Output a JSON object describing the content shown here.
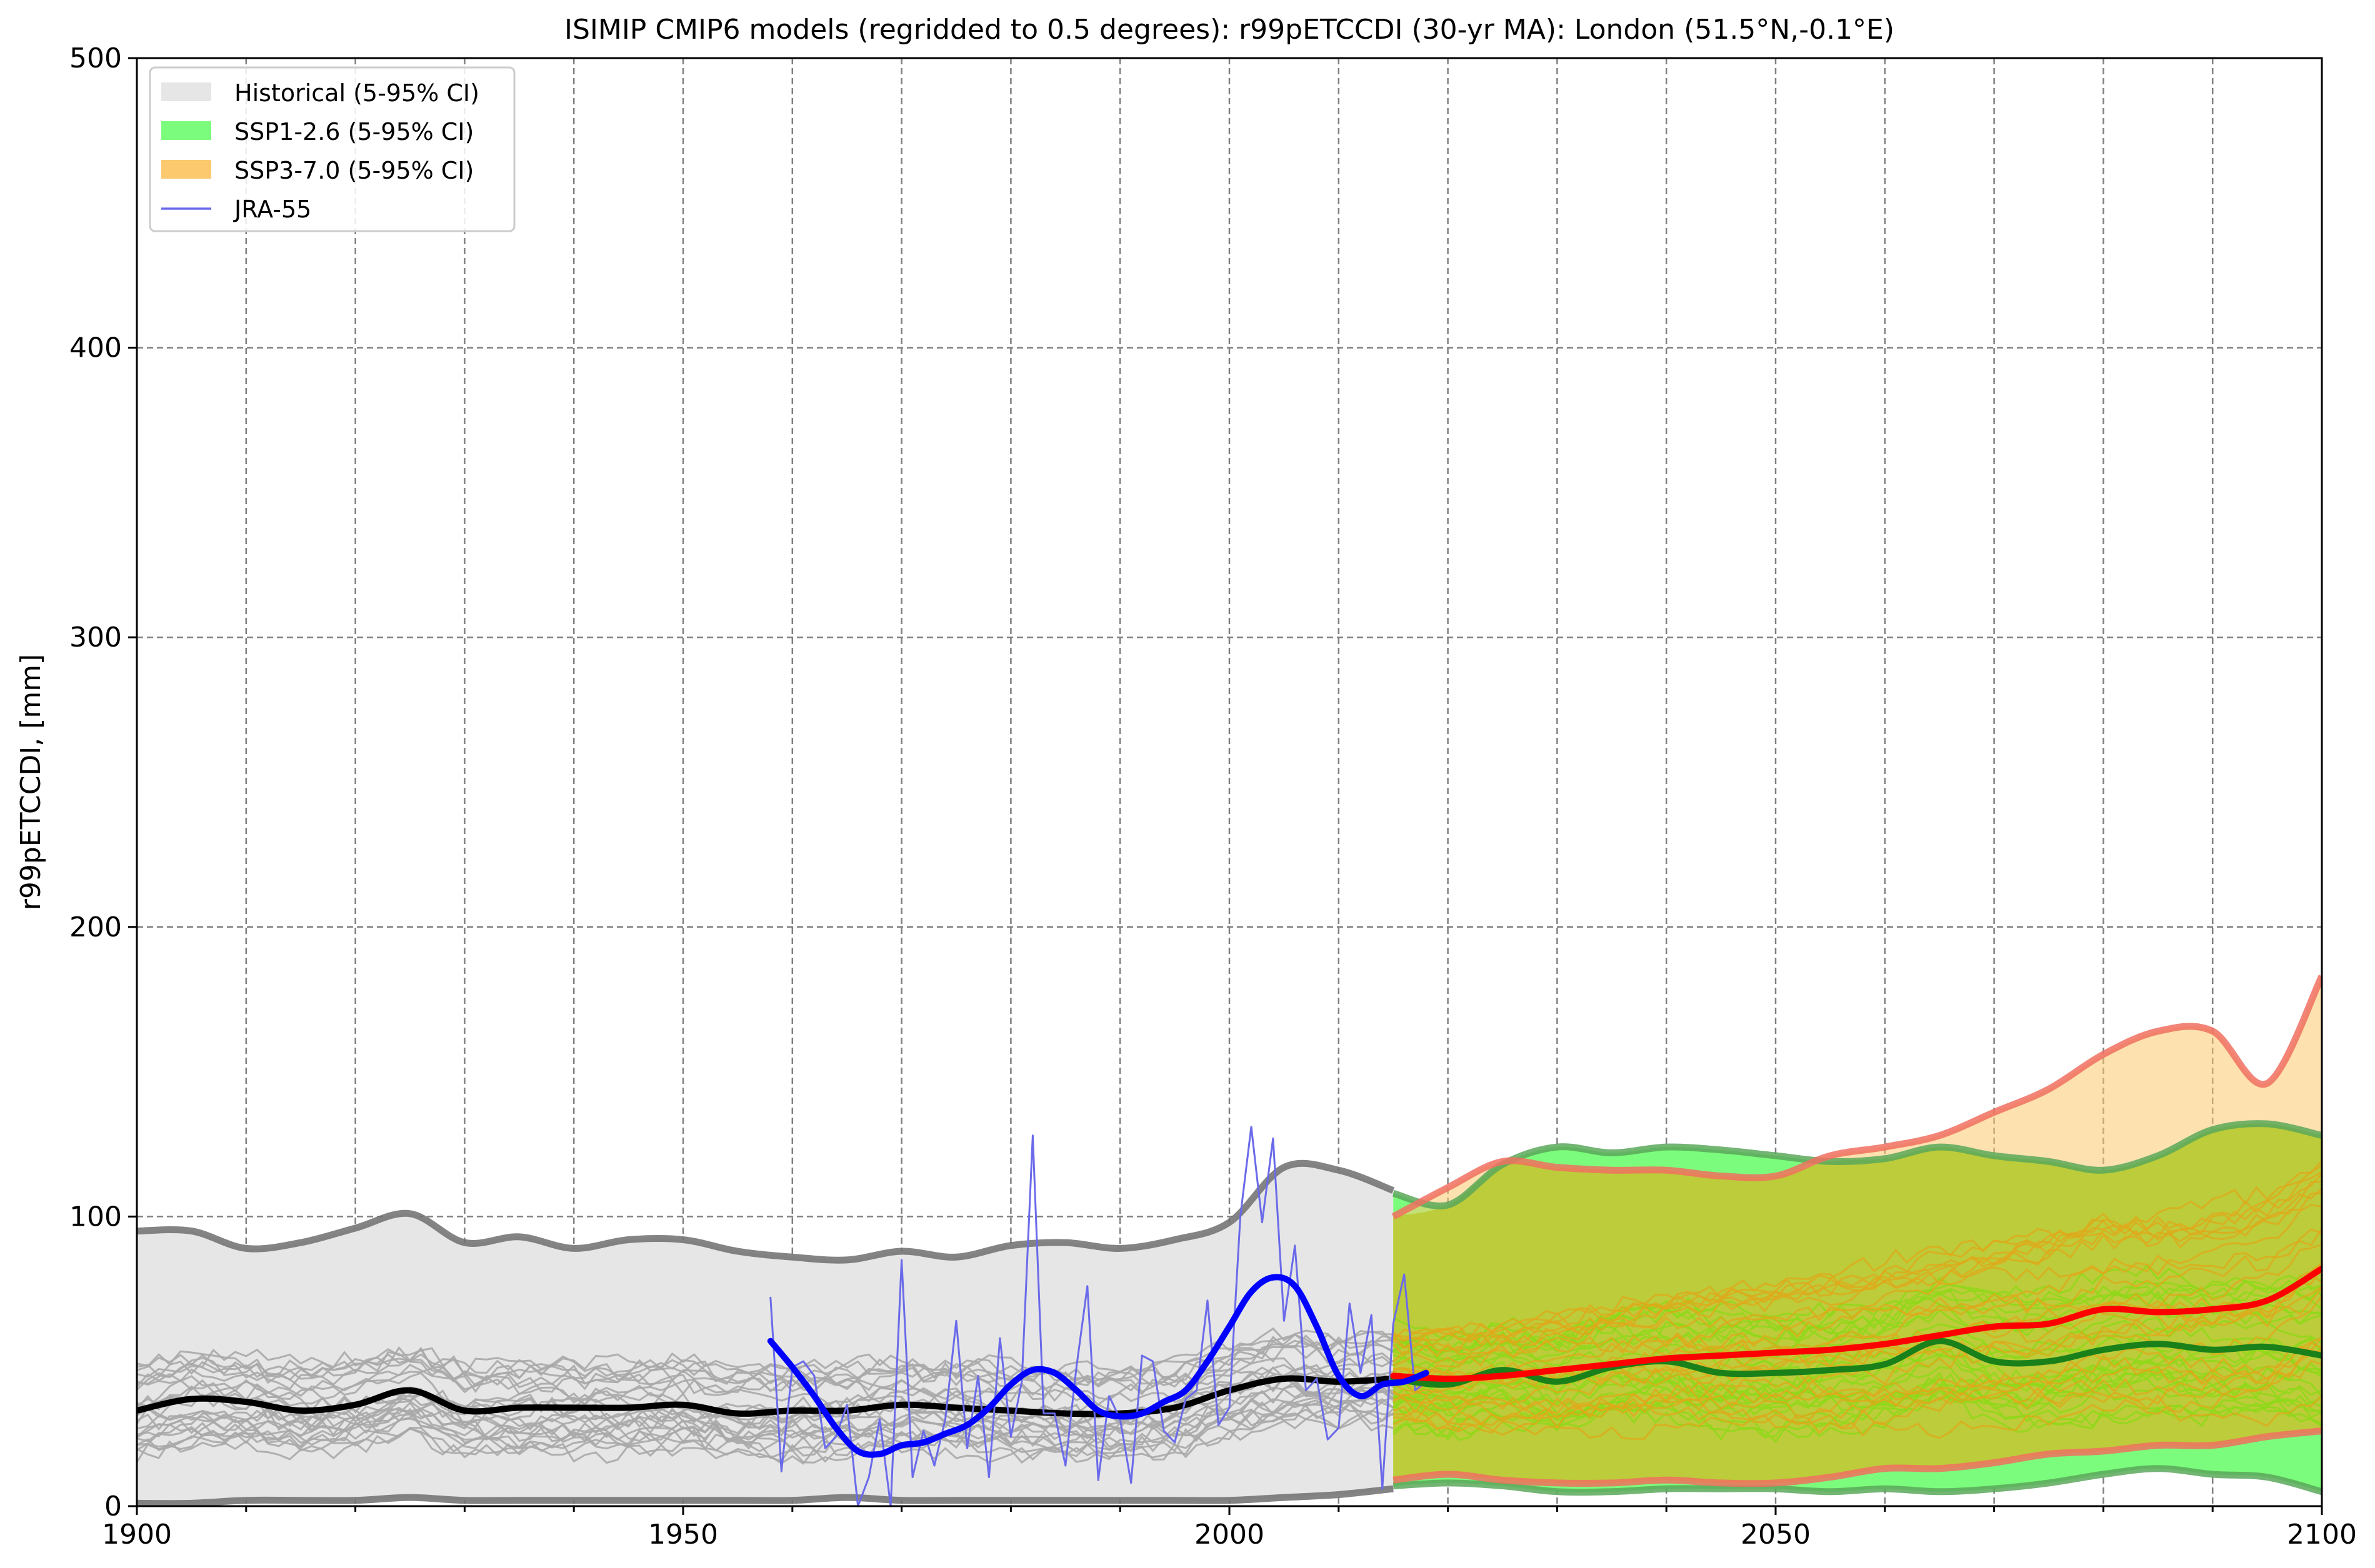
{
  "chart_data": {
    "type": "line",
    "title": "ISIMIP CMIP6 models (regridded to 0.5 degrees): r99pETCCDI (30-yr MA): London (51.5°N,-0.1°E)",
    "xlabel": "",
    "ylabel": "r99pETCCDI, [mm]",
    "xlim": [
      1900,
      2100
    ],
    "ylim": [
      0,
      500
    ],
    "x_major_ticks": [
      1900,
      1950,
      2000,
      2050,
      2100
    ],
    "x_tick_labels": [
      "1900",
      "1950",
      "2000",
      "2050",
      "2100"
    ],
    "y_ticks": [
      0,
      100,
      200,
      300,
      400,
      500
    ],
    "y_tick_labels": [
      "0",
      "100",
      "200",
      "300",
      "400",
      "500"
    ],
    "grid": true,
    "legend_position": "top-left",
    "legend": [
      {
        "label": "Historical (5-95% CI)",
        "kind": "patch",
        "color": "#e6e6e6"
      },
      {
        "label": "SSP1-2.6 (5-95% CI)",
        "kind": "patch",
        "color": "#7cfc7c"
      },
      {
        "label": "SSP3-7.0 (5-95% CI)",
        "kind": "patch",
        "color": "#fcc96e"
      },
      {
        "label": "JRA-55",
        "kind": "line",
        "color": "#6a6aea"
      }
    ],
    "bands": [
      {
        "name": "Historical (5-95% CI)",
        "color": "#e6e6e6",
        "edge_color": "#6e6e6e",
        "x": [
          1900,
          1905,
          1910,
          1915,
          1920,
          1925,
          1930,
          1935,
          1940,
          1945,
          1950,
          1955,
          1960,
          1965,
          1970,
          1975,
          1980,
          1985,
          1990,
          1995,
          2000,
          2005,
          2010,
          2015
        ],
        "upper": [
          95,
          95,
          89,
          91,
          96,
          101,
          91,
          93,
          89,
          92,
          92,
          88,
          86,
          85,
          88,
          86,
          90,
          91,
          89,
          92,
          98,
          117,
          116,
          109
        ],
        "lower": [
          1,
          1,
          2,
          2,
          2,
          3,
          2,
          2,
          2,
          2,
          2,
          2,
          2,
          3,
          2,
          2,
          2,
          2,
          2,
          2,
          2,
          3,
          4,
          6
        ]
      },
      {
        "name": "SSP1-2.6 (5-95% CI)",
        "color": "#7cfc7c",
        "edge_color": "#5aa85a",
        "x": [
          2015,
          2020,
          2025,
          2030,
          2035,
          2040,
          2045,
          2050,
          2055,
          2060,
          2065,
          2070,
          2075,
          2080,
          2085,
          2090,
          2095,
          2100
        ],
        "upper": [
          108,
          104,
          118,
          124,
          122,
          124,
          123,
          121,
          119,
          120,
          124,
          121,
          119,
          116,
          121,
          130,
          132,
          128
        ],
        "lower": [
          7,
          8,
          7,
          5,
          5,
          6,
          6,
          6,
          5,
          6,
          5,
          6,
          8,
          11,
          13,
          11,
          10,
          5
        ]
      },
      {
        "name": "SSP3-7.0 (5-95% CI)",
        "color": "#fcc96e",
        "edge_color": "#f07060",
        "x": [
          2015,
          2020,
          2025,
          2030,
          2035,
          2040,
          2045,
          2050,
          2055,
          2060,
          2065,
          2070,
          2075,
          2080,
          2085,
          2090,
          2095,
          2100
        ],
        "upper": [
          100,
          110,
          119,
          117,
          116,
          116,
          114,
          114,
          121,
          124,
          128,
          136,
          144,
          156,
          164,
          164,
          146,
          183
        ],
        "lower": [
          9,
          11,
          9,
          8,
          8,
          9,
          8,
          8,
          10,
          13,
          13,
          15,
          18,
          19,
          21,
          21,
          24,
          26
        ]
      }
    ],
    "series": [
      {
        "role": "historical multi-model median",
        "color": "#000000",
        "x": [
          1900,
          1905,
          1910,
          1915,
          1920,
          1925,
          1930,
          1935,
          1940,
          1945,
          1950,
          1955,
          1960,
          1965,
          1970,
          1975,
          1980,
          1985,
          1990,
          1995,
          2000,
          2005,
          2010,
          2015
        ],
        "values": [
          33,
          37,
          36,
          33,
          35,
          40,
          33,
          34,
          34,
          34,
          35,
          32,
          33,
          33,
          35,
          34,
          33,
          32,
          32,
          34,
          40,
          44,
          43,
          44
        ]
      },
      {
        "role": "SSP1-2.6 multi-model median",
        "color": "#1a801a",
        "x": [
          2015,
          2020,
          2025,
          2030,
          2035,
          2040,
          2045,
          2050,
          2055,
          2060,
          2065,
          2070,
          2075,
          2080,
          2085,
          2090,
          2095,
          2100
        ],
        "values": [
          44,
          42,
          47,
          43,
          48,
          50,
          46,
          46,
          47,
          49,
          57,
          50,
          50,
          54,
          56,
          54,
          55,
          52
        ]
      },
      {
        "role": "SSP3-7.0 multi-model median",
        "color": "#ff0000",
        "x": [
          2015,
          2020,
          2025,
          2030,
          2035,
          2040,
          2045,
          2050,
          2055,
          2060,
          2065,
          2070,
          2075,
          2080,
          2085,
          2090,
          2095,
          2100
        ],
        "values": [
          45,
          44,
          45,
          47,
          49,
          51,
          52,
          53,
          54,
          56,
          59,
          62,
          63,
          68,
          67,
          68,
          71,
          82
        ]
      },
      {
        "name": "JRA-55",
        "role": "JRA-55 annual values",
        "color": "#6a6aea",
        "x": [
          1958,
          1959,
          1960,
          1961,
          1962,
          1963,
          1964,
          1965,
          1966,
          1967,
          1968,
          1969,
          1970,
          1971,
          1972,
          1973,
          1974,
          1975,
          1976,
          1977,
          1978,
          1979,
          1980,
          1981,
          1982,
          1983,
          1984,
          1985,
          1986,
          1987,
          1988,
          1989,
          1990,
          1991,
          1992,
          1993,
          1994,
          1995,
          1996,
          1997,
          1998,
          1999,
          2000,
          2001,
          2002,
          2003,
          2004,
          2005,
          2006,
          2007,
          2008,
          2009,
          2010,
          2011,
          2012,
          2013,
          2014,
          2015,
          2016,
          2017,
          2018
        ],
        "values": [
          72,
          12,
          48,
          50,
          45,
          20,
          24,
          35,
          0,
          10,
          30,
          0,
          85,
          10,
          26,
          14,
          30,
          64,
          20,
          45,
          10,
          58,
          24,
          43,
          128,
          32,
          32,
          14,
          48,
          76,
          9,
          38,
          30,
          8,
          52,
          50,
          26,
          22,
          37,
          40,
          71,
          28,
          34,
          100,
          131,
          98,
          127,
          64,
          90,
          40,
          44,
          23,
          27,
          70,
          46,
          66,
          6,
          63,
          80,
          40,
          43
        ]
      },
      {
        "role": "JRA-55 30-yr moving average",
        "color": "#0000ff",
        "x": [
          1958,
          1960,
          1962,
          1964,
          1966,
          1968,
          1970,
          1972,
          1974,
          1976,
          1978,
          1980,
          1982,
          1984,
          1986,
          1988,
          1990,
          1992,
          1994,
          1996,
          1998,
          2000,
          2002,
          2004,
          2006,
          2008,
          2010,
          2012,
          2014,
          2016,
          2018
        ],
        "values": [
          57,
          48,
          38,
          27,
          19,
          18,
          21,
          22,
          25,
          28,
          34,
          42,
          47,
          46,
          40,
          33,
          31,
          32,
          36,
          40,
          50,
          62,
          74,
          79,
          76,
          62,
          45,
          38,
          42,
          43,
          46
        ]
      }
    ]
  }
}
